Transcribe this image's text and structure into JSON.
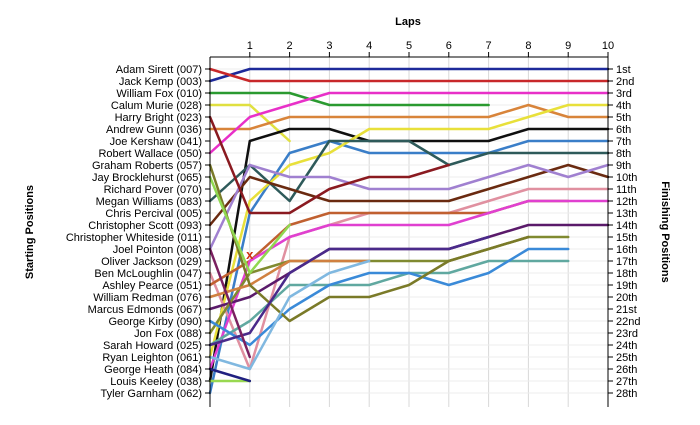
{
  "chart_data": {
    "type": "line",
    "title": "",
    "top_axis_label": "Laps",
    "left_axis_label": "Starting Positions",
    "right_axis_label": "Finishing Positions",
    "laps": [
      0,
      1,
      2,
      3,
      4,
      5,
      6,
      7,
      8,
      9,
      10
    ],
    "lap_labels": [
      "1",
      "2",
      "3",
      "4",
      "5",
      "6",
      "7",
      "8",
      "9",
      "10"
    ],
    "starting_positions": [
      "Adam Sirett (007)",
      "Jack Kemp (003)",
      "William Fox (010)",
      "Calum Murie (028)",
      "Harry Bright (023)",
      "Andrew Gunn (036)",
      "Joe Kershaw (041)",
      "Robert Wallace (050)",
      "Graham Roberts (057)",
      "Jay Brocklehurst (065)",
      "Richard Pover (070)",
      "Megan Williams (083)",
      "Chris Percival (005)",
      "Christopher Scott (093)",
      "Christopher Whiteside (011)",
      "Joel Pointon (008)",
      "Oliver Jackson (029)",
      "Ben McLoughlin (047)",
      "Ashley Pearce (051)",
      "William Redman (076)",
      "Marcus Edmonds (067)",
      "George Kirby (090)",
      "Jon Fox (088)",
      "Sarah Howard (025)",
      "Ryan Leighton (061)",
      "George Heath (084)",
      "Louis Keeley (038)",
      "Tyler Garnham (062)"
    ],
    "finishing_positions": [
      "1st",
      "2nd",
      "3rd",
      "4th",
      "5th",
      "6th",
      "7th",
      "8th",
      "9th",
      "10th",
      "11th",
      "12th",
      "13th",
      "14th",
      "15th",
      "16th",
      "17th",
      "18th",
      "19th",
      "20th",
      "21st",
      "22nd",
      "23rd",
      "24th",
      "25th",
      "26th",
      "27th",
      "28th"
    ],
    "ylim": [
      1,
      28
    ],
    "xlim": [
      0,
      10
    ],
    "grid": true,
    "series": [
      {
        "name": "Adam Sirett (007)",
        "color": "#1e2a9a",
        "positions": [
          2,
          1,
          1,
          1,
          1,
          1,
          1,
          1,
          1,
          1,
          1
        ]
      },
      {
        "name": "Jack Kemp (003)",
        "color": "#c8282a",
        "positions": [
          1,
          2,
          2,
          2,
          2,
          2,
          2,
          2,
          2,
          2,
          2
        ]
      },
      {
        "name": "William Fox (010)",
        "color": "#2a9a30",
        "positions": [
          3,
          3,
          3,
          4,
          4,
          4,
          4,
          4
        ]
      },
      {
        "name": "Calum Murie (028)",
        "color": "#e0e040",
        "positions": [
          4,
          4,
          7
        ]
      },
      {
        "name": "Harry Bright (023)",
        "color": "#d8843a",
        "positions": [
          6,
          6,
          5,
          5,
          5,
          5,
          5,
          5,
          4,
          5,
          5
        ]
      },
      {
        "name": "Andrew Gunn (036)",
        "color": "#e830c8",
        "positions": [
          8,
          5,
          4,
          3,
          3,
          3,
          3,
          3,
          3,
          3,
          3
        ]
      },
      {
        "name": "Joe Kershaw (041)",
        "color": "#101010",
        "positions": [
          27,
          7,
          6,
          6,
          7,
          7,
          7,
          7,
          6,
          6,
          6
        ]
      },
      {
        "name": "Robert Wallace (050)",
        "color": "#3a7ec8",
        "positions": [
          28,
          13,
          8,
          7,
          8,
          8,
          8,
          8,
          7,
          7,
          7
        ]
      },
      {
        "name": "Graham Roberts (057)",
        "color": "#e8e03a",
        "positions": [
          25,
          12,
          9,
          8,
          6,
          6,
          6,
          6,
          5,
          4,
          4
        ]
      },
      {
        "name": "Jay Brocklehurst (065)",
        "color": "#2e5a5a",
        "positions": [
          12,
          9,
          12,
          7,
          7,
          7,
          9,
          8,
          8,
          8,
          8
        ]
      },
      {
        "name": "Richard Pover (070)",
        "color": "#6a2a10",
        "positions": [
          14,
          10,
          11,
          12,
          12,
          12,
          12,
          11,
          10,
          9,
          10
        ]
      },
      {
        "name": "Megan Williams (083)",
        "color": "#a080d0",
        "positions": [
          16,
          9,
          10,
          10,
          11,
          11,
          11,
          10,
          9,
          10,
          9
        ]
      },
      {
        "name": "Chris Percival (005)",
        "color": "#8a1a20",
        "positions": [
          5,
          13,
          13,
          11,
          10,
          10,
          9
        ]
      },
      {
        "name": "Christopher Scott (093)",
        "color": "#e090a0",
        "positions": [
          18,
          26,
          15,
          14,
          13,
          13,
          13,
          12,
          11,
          11,
          11
        ]
      },
      {
        "name": "Christopher Whiteside (011)",
        "color": "#c06030",
        "positions": [
          19,
          17,
          14,
          13,
          13,
          13,
          13,
          13,
          12,
          12
        ]
      },
      {
        "name": "Joel Pointon (008)",
        "color": "#e040d0",
        "positions": [
          26,
          17,
          15,
          14,
          14,
          14,
          14,
          13,
          12,
          12,
          12
        ]
      },
      {
        "name": "Oliver Jackson (029)",
        "color": "#5a1a6a",
        "positions": [
          21,
          20,
          18,
          16,
          16,
          16,
          16,
          15,
          14,
          14,
          14
        ]
      },
      {
        "name": "Ben McLoughlin (047)",
        "color": "#808a30",
        "positions": [
          23,
          18,
          17,
          17,
          17,
          17,
          17,
          16,
          15,
          15
        ]
      },
      {
        "name": "Ashley Pearce (051)",
        "color": "#60a8a0",
        "positions": [
          24,
          22,
          19,
          19,
          19,
          18,
          18,
          17,
          17,
          17
        ]
      },
      {
        "name": "William Redman (076)",
        "color": "#3a8ad8",
        "positions": [
          22,
          24,
          21,
          19,
          18,
          18,
          19,
          18,
          16,
          16
        ]
      },
      {
        "name": "Marcus Edmonds (067)",
        "color": "#d08040",
        "positions": [
          20,
          19,
          17,
          17,
          17
        ]
      },
      {
        "name": "George Kirby (090)",
        "color": "#7a7a28",
        "positions": [
          9,
          19,
          22,
          20,
          20,
          19,
          17,
          16,
          15
        ]
      },
      {
        "name": "Jon Fox (088)",
        "color": "#4a2a8a",
        "positions": [
          24,
          23,
          18,
          16,
          16,
          16,
          16,
          15
        ]
      },
      {
        "name": "Sarah Howard (025)",
        "color": "#80b8e0",
        "positions": [
          25,
          26,
          20,
          18,
          17
        ]
      },
      {
        "name": "Ryan Leighton (061)",
        "color": "#98d850",
        "positions": [
          27,
          27
        ]
      },
      {
        "name": "George Heath (084)",
        "color": "#202080",
        "positions": [
          26,
          27
        ]
      },
      {
        "name": "Louis Keeley (038)",
        "color": "#90d850",
        "positions": [
          10,
          18,
          14
        ]
      },
      {
        "name": "Tyler Garnham (062)",
        "color": "#7a2060",
        "positions": [
          16,
          25
        ]
      }
    ],
    "markers": [
      {
        "label": "x",
        "lap": 1,
        "position": 16.5,
        "color": "#d03010"
      }
    ]
  }
}
